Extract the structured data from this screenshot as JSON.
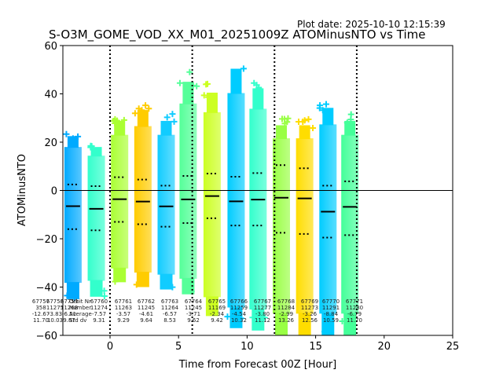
{
  "chart_data": {
    "type": "scatter",
    "plot_date": "Plot date: 2025-10-10 12:15:39",
    "title": "S-O3M_GOME_VOD_XX_M01_20251009Z ATOMinusNTO vs Time",
    "xlabel": "Time from Forecast 00Z [Hour]",
    "ylabel": "ATOMinusNTO",
    "xlim": [
      -3.44,
      25
    ],
    "ylim": [
      -60,
      60
    ],
    "xticks": [
      "0",
      "5",
      "10",
      "15",
      "20",
      "25"
    ],
    "xtick_values": [
      0,
      5,
      10,
      15,
      20,
      25
    ],
    "yticks": [
      "60",
      "40",
      "20",
      "0",
      "−20",
      "−40",
      "−60"
    ],
    "ytick_values": [
      60,
      40,
      20,
      0,
      -20,
      -40,
      -60
    ],
    "hline": 0,
    "forecast_boundaries": [
      0,
      6,
      12,
      18
    ],
    "stat_labels": [
      "Orbit Nr",
      "Number",
      "Average",
      "Std dv"
    ],
    "orbits": [
      {
        "orbit": "67757",
        "number": "358",
        "average": "-12.67",
        "stddev": "11.70"
      },
      {
        "orbit": "67758",
        "number": "11275",
        "average": "-3.83",
        "stddev": "10.03"
      },
      {
        "orbit": "67759",
        "number": "11268",
        "average": "-6.51",
        "stddev": "9.87",
        "time": -2.7,
        "mean": -6.5,
        "q_upper": 2.5,
        "q_lower": -16.0,
        "min": -45,
        "max": 25,
        "color": "#00aaff"
      },
      {
        "orbit": "67760",
        "number": "11274",
        "average": "-7.57",
        "stddev": "9.31",
        "time": -1.0,
        "mean": -7.6,
        "q_upper": 1.8,
        "q_lower": -16.5,
        "min": -44,
        "max": 20,
        "color": "#33ffcc"
      },
      {
        "orbit": "67761",
        "number": "11263",
        "average": "-3.57",
        "stddev": "9.29",
        "time": 0.7,
        "mean": -3.6,
        "q_upper": 5.5,
        "q_lower": -13.0,
        "min": -38,
        "max": 32,
        "color": "#aaff33"
      },
      {
        "orbit": "67762",
        "number": "11245",
        "average": "-4.61",
        "stddev": "9.64",
        "time": 2.4,
        "mean": -4.6,
        "q_upper": 4.5,
        "q_lower": -14.0,
        "min": -40,
        "max": 37,
        "color": "#ffcc00"
      },
      {
        "orbit": "67763",
        "number": "11264",
        "average": "-6.57",
        "stddev": "8.53",
        "time": 4.1,
        "mean": -6.6,
        "q_upper": 2.0,
        "q_lower": -15.0,
        "min": -41,
        "max": 32,
        "color": "#11ccff"
      },
      {
        "orbit": "67764",
        "number": "11245",
        "average": "-3.71",
        "stddev": "9.62",
        "time": 5.7,
        "mean": -3.7,
        "q_upper": 6.0,
        "q_lower": -13.5,
        "min": -43,
        "max": 50,
        "color": "#55ff99"
      },
      {
        "orbit": "67765",
        "number": "11169",
        "average": "-2.34",
        "stddev": "9.42",
        "time": 7.45,
        "mean": -2.3,
        "q_upper": 7.0,
        "q_lower": -11.5,
        "min": -52,
        "max": 45,
        "color": "#ccff22"
      },
      {
        "orbit": "67766",
        "number": "11259",
        "average": "-4.54",
        "stddev": "10.32",
        "time": 9.2,
        "mean": -4.5,
        "q_upper": 5.7,
        "q_lower": -14.5,
        "min": -57,
        "max": 56,
        "color": "#00ccff"
      },
      {
        "orbit": "67767",
        "number": "11277",
        "average": "-3.80",
        "stddev": "11.12",
        "time": 10.8,
        "mean": -3.8,
        "q_upper": 7.2,
        "q_lower": -14.5,
        "min": -58,
        "max": 47,
        "color": "#33ffcc"
      },
      {
        "orbit": "67768",
        "number": "11284",
        "average": "-2.99",
        "stddev": "13.26",
        "time": 12.5,
        "mean": -3.0,
        "q_upper": 10.5,
        "q_lower": -17.5,
        "min": -60,
        "max": 30,
        "color": "#99ff44"
      },
      {
        "orbit": "67769",
        "number": "11273",
        "average": "-3.26",
        "stddev": "12.56",
        "time": 14.2,
        "mean": -3.3,
        "q_upper": 9.2,
        "q_lower": -18.0,
        "min": -60,
        "max": 30,
        "color": "#ffdd00"
      },
      {
        "orbit": "67770",
        "number": "11291",
        "average": "-8.84",
        "stddev": "10.59",
        "time": 15.9,
        "mean": -8.8,
        "q_upper": 2.0,
        "q_lower": -19.5,
        "min": -60,
        "max": 38,
        "color": "#00ccff"
      },
      {
        "orbit": "67771",
        "number": "11280",
        "average": "-6.79",
        "stddev": "11.70",
        "time": 17.5,
        "mean": -6.8,
        "q_upper": 3.8,
        "q_lower": -18.5,
        "min": -60,
        "max": 32,
        "color": "#44ff99"
      }
    ]
  }
}
